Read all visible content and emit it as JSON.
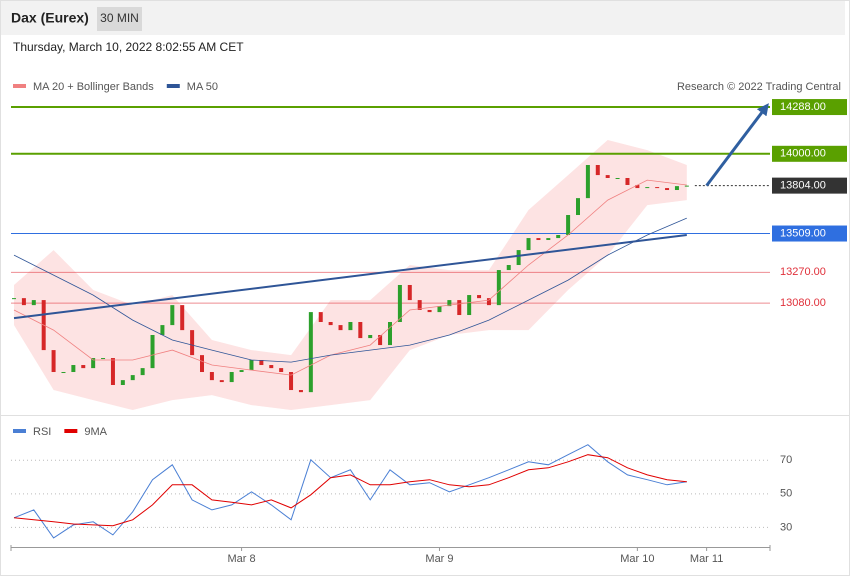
{
  "header": {
    "title": "Dax (Eurex)",
    "timeframe": "30 MIN",
    "timestamp": "Thursday, March 10, 2022 8:02:55 AM CET"
  },
  "chart_data": [
    {
      "type": "candlestick",
      "credit": "Research © 2022 Trading Central",
      "xlim": [
        0,
        76
      ],
      "ylim": [
        12422,
        14393
      ],
      "up_color": "#2ca02c",
      "down_color": "#d62728",
      "x": [
        0,
        1,
        2,
        3,
        4,
        5,
        6,
        7,
        8,
        9,
        10,
        11,
        12,
        13,
        14,
        15,
        16,
        17,
        18,
        19,
        20,
        21,
        22,
        23,
        24,
        25,
        26,
        27,
        28,
        29,
        30,
        31,
        32,
        33,
        34,
        35,
        36,
        37,
        38,
        39,
        40,
        41,
        42,
        43,
        44,
        45,
        46,
        47,
        48,
        49,
        50,
        51,
        52,
        53,
        54,
        55,
        56,
        57,
        58,
        59,
        60,
        61,
        62,
        63,
        64,
        65,
        66,
        67,
        68
      ],
      "values": [
        13111,
        13068,
        13099,
        12791,
        12656,
        12656,
        12699,
        12680,
        12742,
        12742,
        12576,
        12606,
        12637,
        12680,
        12884,
        12945,
        13068,
        12914,
        12760,
        12656,
        12606,
        12594,
        12656,
        12668,
        12730,
        12699,
        12680,
        12656,
        12545,
        12532,
        13025,
        12964,
        12945,
        12914,
        12964,
        12865,
        12884,
        12822,
        12964,
        13192,
        13099,
        13038,
        13025,
        13062,
        13099,
        13007,
        13130,
        13111,
        13068,
        13284,
        13315,
        13407,
        13481,
        13469,
        13481,
        13500,
        13623,
        13727,
        13931,
        13869,
        13851,
        13851,
        13808,
        13789,
        13795,
        13789,
        13777,
        13801,
        13804
      ],
      "series": [
        {
          "name": "MA 20 + Bollinger Bands",
          "color": "#f08080",
          "band_color": "#fde3e3",
          "x": [
            0,
            4,
            8,
            12,
            16,
            20,
            24,
            28,
            32,
            36,
            40,
            44,
            48,
            52,
            56,
            60,
            64,
            68
          ],
          "values": [
            13038,
            12914,
            12730,
            12730,
            12791,
            12699,
            12668,
            12637,
            12760,
            12822,
            13038,
            13068,
            13099,
            13315,
            13500,
            13715,
            13838,
            13808
          ],
          "upper": [
            13192,
            13407,
            13161,
            13068,
            13130,
            12853,
            12791,
            12760,
            13099,
            13099,
            13315,
            13284,
            13284,
            13654,
            13869,
            14085,
            14023,
            13931
          ],
          "lower": [
            12945,
            12545,
            12483,
            12422,
            12483,
            12514,
            12452,
            12422,
            12452,
            12483,
            12791,
            12884,
            12914,
            12914,
            13161,
            13376,
            13684,
            13715
          ]
        },
        {
          "name": "MA 50",
          "color": "#2f5597",
          "x": [
            0,
            4,
            8,
            12,
            16,
            20,
            24,
            28,
            32,
            36,
            40,
            44,
            48,
            52,
            56,
            60,
            64,
            68
          ],
          "values": [
            13376,
            13253,
            13130,
            12976,
            12853,
            12791,
            12730,
            12717,
            12760,
            12791,
            12822,
            12884,
            12976,
            13099,
            13222,
            13376,
            13500,
            13604
          ]
        }
      ],
      "trendline": {
        "color": "#2f5597",
        "x": [
          0,
          68
        ],
        "values": [
          12988,
          13500
        ]
      },
      "arrow": {
        "color": "#2f5fa0",
        "x": [
          70,
          76
        ],
        "values": [
          13804,
          14288
        ]
      },
      "levels": [
        {
          "value": 14288,
          "label": "14288.00",
          "color": "#5aa000",
          "box": true,
          "width": 2
        },
        {
          "value": 14000,
          "label": "14000.00",
          "color": "#5aa000",
          "box": true,
          "width": 2
        },
        {
          "value": 13804,
          "label": "13804.00",
          "color": "#333333",
          "box": true,
          "width": 1,
          "dash": true
        },
        {
          "value": 13509,
          "label": "13509.00",
          "color": "#2f6fe0",
          "box": true,
          "width": 1
        },
        {
          "value": 13270,
          "label": "13270.00",
          "color": "#e0303a",
          "box": false,
          "width": 1
        },
        {
          "value": 13080,
          "label": "13080.00",
          "color": "#e0303a",
          "box": false,
          "width": 1
        }
      ]
    },
    {
      "type": "line",
      "xlim": [
        0,
        76
      ],
      "ylim": [
        18,
        94
      ],
      "yticks": [
        30,
        50,
        70
      ],
      "grid": true,
      "xticks": [
        {
          "value": 23,
          "label": "Mar 8"
        },
        {
          "value": 43,
          "label": "Mar 9"
        },
        {
          "value": 63,
          "label": "Mar 10"
        },
        {
          "value": 70,
          "label": "Mar 11"
        }
      ],
      "series": [
        {
          "name": "RSI",
          "color": "#4a7fd4",
          "x": [
            0,
            2,
            4,
            6,
            8,
            10,
            12,
            14,
            16,
            18,
            20,
            22,
            24,
            26,
            28,
            30,
            32,
            34,
            36,
            38,
            40,
            42,
            44,
            46,
            48,
            50,
            52,
            54,
            56,
            58,
            60,
            62,
            64,
            66,
            68
          ],
          "values": [
            35.7,
            40.4,
            23.7,
            31.5,
            33.3,
            25.5,
            39.3,
            58.4,
            67.3,
            46.4,
            40.4,
            43.4,
            51.2,
            43.4,
            34.5,
            70.3,
            59.6,
            64.3,
            46.4,
            64.3,
            55.4,
            56.6,
            51.2,
            55.4,
            59.6,
            64.3,
            69.1,
            67.3,
            73.3,
            79.3,
            69.1,
            61.3,
            58.4,
            55.4,
            57.2
          ]
        },
        {
          "name": "9MA",
          "color": "#e00000",
          "x": [
            0,
            2,
            4,
            6,
            8,
            10,
            12,
            14,
            16,
            18,
            20,
            22,
            24,
            26,
            28,
            30,
            32,
            34,
            36,
            38,
            40,
            42,
            44,
            46,
            48,
            50,
            52,
            54,
            56,
            58,
            60,
            62,
            64,
            66,
            68
          ],
          "values": [
            35.7,
            34.5,
            33.3,
            32,
            31.5,
            31,
            34.5,
            43.4,
            55.4,
            55.4,
            46.4,
            45,
            43.4,
            46.4,
            41.6,
            49.4,
            59.6,
            61.3,
            55.4,
            55.4,
            57.2,
            58.4,
            55.4,
            54.2,
            55.4,
            59.6,
            64.3,
            65.5,
            69.1,
            73.3,
            71.5,
            65.5,
            61.3,
            58.4,
            57.2
          ]
        }
      ]
    }
  ]
}
